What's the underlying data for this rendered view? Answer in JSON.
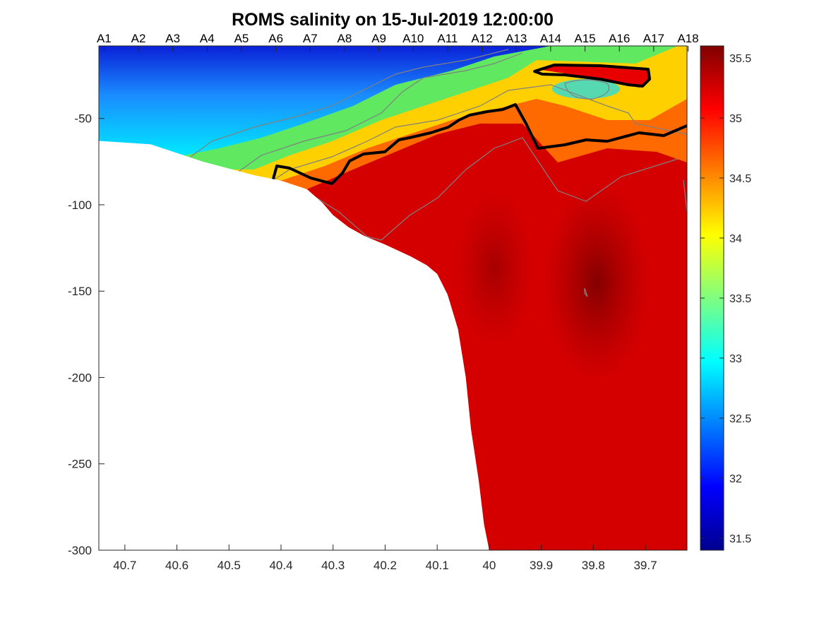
{
  "chart_data": {
    "type": "heatmap",
    "title": "ROMS salinity on 15-Jul-2019 12:00:00",
    "xlabel": "",
    "ylabel": "",
    "xlim": [
      40.75,
      39.62
    ],
    "x_reversed": true,
    "ylim": [
      -300,
      -8
    ],
    "x_ticks": [
      40.7,
      40.6,
      40.5,
      40.4,
      40.3,
      40.2,
      40.1,
      40,
      39.9,
      39.8,
      39.7
    ],
    "x_tick_labels": [
      "40.7",
      "40.6",
      "40.5",
      "40.4",
      "40.3",
      "40.2",
      "40.1",
      "40",
      "39.9",
      "39.8",
      "39.7"
    ],
    "y_ticks": [
      -50,
      -100,
      -150,
      -200,
      -250,
      -300
    ],
    "y_tick_labels": [
      "-50",
      "-100",
      "-150",
      "-200",
      "-250",
      "-300"
    ],
    "grid": true,
    "stations": {
      "labels": [
        "A1",
        "A2",
        "A3",
        "A4",
        "A5",
        "A6",
        "A7",
        "A8",
        "A9",
        "A10",
        "A11",
        "A12",
        "A13",
        "A14",
        "A15",
        "A16",
        "A17",
        "A18"
      ],
      "x": [
        40.74,
        40.674,
        40.608,
        40.542,
        40.476,
        40.41,
        40.344,
        40.278,
        40.212,
        40.146,
        40.08,
        40.014,
        39.948,
        39.882,
        39.816,
        39.75,
        39.684,
        39.618
      ]
    },
    "colorbar": {
      "colormap": "jet",
      "min": 31.4,
      "max": 35.6,
      "ticks": [
        31.5,
        32,
        32.5,
        33,
        33.5,
        34,
        34.5,
        35,
        35.5
      ],
      "tick_labels": [
        "31.5",
        "32",
        "32.5",
        "33",
        "33.5",
        "34",
        "34.5",
        "35",
        "35.5"
      ]
    },
    "salinity_field": {
      "surface_fresh_layer": {
        "x_range": [
          40.75,
          40.3
        ],
        "depth_range": [
          -8,
          -60
        ],
        "salinity_min": 31.5,
        "salinity_max": 33.2
      },
      "thermocline_frontal_zone": {
        "salinity_range": [
          33.2,
          34.8
        ]
      },
      "deep_saline_water": {
        "salinity_range": [
          35.0,
          35.5
        ]
      },
      "salinity_maximum_core": {
        "x": 39.8,
        "depth": -150,
        "salinity": 35.5
      }
    },
    "contours": {
      "highlighted_level": 35,
      "highlighted_color": "#000000",
      "other_color": "#808080"
    },
    "bathymetry": {
      "x": [
        40.75,
        40.7,
        40.65,
        40.62,
        40.58,
        40.55,
        40.5,
        40.45,
        40.4,
        40.35,
        40.32,
        40.3,
        40.27,
        40.24,
        40.2,
        40.15,
        40.12,
        40.1,
        40.08,
        40.06,
        40.045,
        40.035,
        40.02,
        40.01,
        40.0
      ],
      "depth": [
        -63,
        -64,
        -65,
        -68,
        -72,
        -75,
        -79,
        -83,
        -86,
        -91,
        -99,
        -106,
        -113,
        -118,
        -123,
        -130,
        -135,
        -140,
        -152,
        -172,
        -200,
        -230,
        -260,
        -285,
        -300
      ]
    }
  }
}
